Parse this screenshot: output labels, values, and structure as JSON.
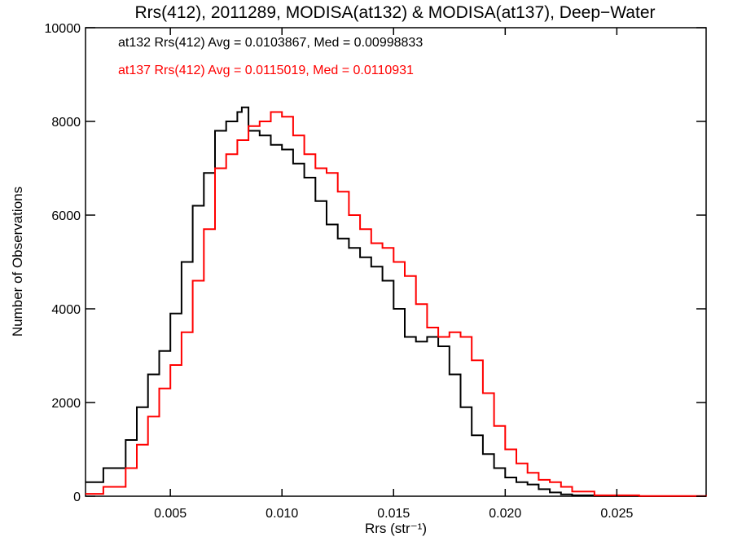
{
  "chart_data": {
    "type": "line",
    "title": "Rrs(412), 2011289, MODISA(at132) & MODISA(at137), Deep−Water",
    "xlabel": "Rrs (str⁻¹)",
    "ylabel": "Number of Observations",
    "xlim": [
      0.0012,
      0.029
    ],
    "ylim": [
      0,
      10000
    ],
    "x_ticks": [
      0.005,
      0.01,
      0.015,
      0.02,
      0.025
    ],
    "x_tick_labels": [
      "0.005",
      "0.010",
      "0.015",
      "0.020",
      "0.025"
    ],
    "y_ticks": [
      0,
      2000,
      4000,
      6000,
      8000,
      10000
    ],
    "y_tick_labels": [
      "0",
      "2000",
      "4000",
      "6000",
      "8000",
      "10000"
    ],
    "grid": false,
    "annotations": [
      {
        "text": "at132 Rrs(412) Avg = 0.0103867, Med = 0.00998833",
        "color": "#000000"
      },
      {
        "text": "at137 Rrs(412) Avg = 0.0115019, Med = 0.0110931",
        "color": "#ff0000"
      }
    ],
    "series": [
      {
        "color": "#000000",
        "x": [
          0.0012,
          0.002,
          0.003,
          0.0035,
          0.004,
          0.0045,
          0.005,
          0.0055,
          0.006,
          0.0065,
          0.007,
          0.0075,
          0.008,
          0.0082,
          0.0085,
          0.009,
          0.0095,
          0.01,
          0.0105,
          0.011,
          0.0115,
          0.012,
          0.0125,
          0.013,
          0.0135,
          0.014,
          0.0145,
          0.015,
          0.0155,
          0.016,
          0.0165,
          0.017,
          0.0175,
          0.018,
          0.0185,
          0.019,
          0.0195,
          0.02,
          0.0205,
          0.021,
          0.0215,
          0.022,
          0.0225,
          0.023,
          0.024,
          0.026,
          0.029
        ],
        "y": [
          300,
          600,
          1200,
          1900,
          2600,
          3100,
          3900,
          5000,
          6200,
          6900,
          7800,
          8000,
          8200,
          8300,
          7800,
          7700,
          7500,
          7400,
          7100,
          6800,
          6300,
          5800,
          5500,
          5300,
          5100,
          4900,
          4600,
          4000,
          3400,
          3300,
          3400,
          3200,
          2600,
          1900,
          1300,
          900,
          600,
          400,
          300,
          250,
          150,
          80,
          40,
          20,
          5,
          0,
          0
        ]
      },
      {
        "color": "#ff0000",
        "x": [
          0.0012,
          0.002,
          0.003,
          0.0035,
          0.004,
          0.0045,
          0.005,
          0.0055,
          0.006,
          0.0065,
          0.007,
          0.0075,
          0.008,
          0.0085,
          0.009,
          0.0095,
          0.01,
          0.0105,
          0.011,
          0.0115,
          0.012,
          0.0125,
          0.013,
          0.0135,
          0.014,
          0.0145,
          0.015,
          0.0155,
          0.016,
          0.0165,
          0.017,
          0.0175,
          0.018,
          0.0185,
          0.019,
          0.0195,
          0.02,
          0.0205,
          0.021,
          0.0215,
          0.022,
          0.0225,
          0.023,
          0.024,
          0.026,
          0.029
        ],
        "y": [
          50,
          200,
          600,
          1100,
          1700,
          2300,
          2800,
          3500,
          4600,
          5700,
          7000,
          7300,
          7600,
          7900,
          8000,
          8200,
          8100,
          7700,
          7300,
          7000,
          6900,
          6500,
          6000,
          5700,
          5400,
          5300,
          5000,
          4700,
          4100,
          3600,
          3400,
          3500,
          3400,
          2900,
          2200,
          1500,
          1000,
          700,
          500,
          350,
          300,
          200,
          100,
          20,
          5,
          0
        ]
      }
    ]
  }
}
